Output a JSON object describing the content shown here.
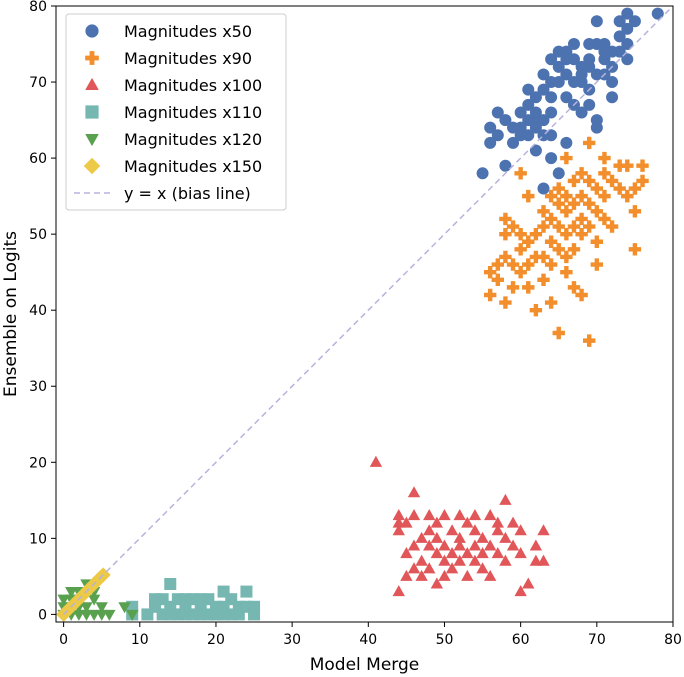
{
  "chart_data": {
    "type": "scatter",
    "title": "",
    "xlabel": "Model Merge",
    "ylabel": "Ensemble on Logits",
    "xlim": [
      -1,
      80
    ],
    "ylim": [
      -1,
      80
    ],
    "xticks": [
      0,
      10,
      20,
      30,
      40,
      50,
      60,
      70,
      80
    ],
    "yticks": [
      0,
      10,
      20,
      30,
      40,
      50,
      60,
      70,
      80
    ],
    "legend_position": "top-left",
    "series": [
      {
        "name": "Magnitudes x50",
        "marker": "circle",
        "color": "#4c72b0",
        "points": [
          [
            55,
            58
          ],
          [
            56,
            62
          ],
          [
            56,
            64
          ],
          [
            57,
            63
          ],
          [
            57,
            66
          ],
          [
            58,
            59
          ],
          [
            58,
            65
          ],
          [
            59,
            64
          ],
          [
            59,
            62
          ],
          [
            60,
            63
          ],
          [
            60,
            66
          ],
          [
            60,
            64
          ],
          [
            61,
            65
          ],
          [
            61,
            67
          ],
          [
            61,
            63
          ],
          [
            62,
            68
          ],
          [
            62,
            65
          ],
          [
            62,
            61
          ],
          [
            62,
            66
          ],
          [
            63,
            69
          ],
          [
            63,
            71
          ],
          [
            63,
            65
          ],
          [
            63,
            56
          ],
          [
            64,
            68
          ],
          [
            64,
            73
          ],
          [
            64,
            70
          ],
          [
            64,
            66
          ],
          [
            64,
            60
          ],
          [
            65,
            72
          ],
          [
            65,
            74
          ],
          [
            65,
            70
          ],
          [
            65,
            58
          ],
          [
            66,
            71
          ],
          [
            66,
            74
          ],
          [
            66,
            68
          ],
          [
            66,
            62
          ],
          [
            67,
            73
          ],
          [
            67,
            70
          ],
          [
            67,
            67
          ],
          [
            68,
            72
          ],
          [
            68,
            70
          ],
          [
            68,
            66
          ],
          [
            69,
            75
          ],
          [
            69,
            72
          ],
          [
            69,
            69
          ],
          [
            69,
            67
          ],
          [
            70,
            78
          ],
          [
            70,
            75
          ],
          [
            70,
            71
          ],
          [
            70,
            65
          ],
          [
            70,
            64
          ],
          [
            71,
            75
          ],
          [
            71,
            73
          ],
          [
            71,
            71
          ],
          [
            72,
            74
          ],
          [
            72,
            72
          ],
          [
            72,
            70
          ],
          [
            72,
            68
          ],
          [
            73,
            78
          ],
          [
            73,
            76
          ],
          [
            73,
            74
          ],
          [
            74,
            79
          ],
          [
            74,
            77
          ],
          [
            74,
            75
          ],
          [
            74,
            73
          ],
          [
            75,
            78
          ],
          [
            78,
            79
          ],
          [
            63,
            63
          ],
          [
            64,
            63
          ],
          [
            62,
            64
          ],
          [
            61,
            69
          ],
          [
            66,
            73
          ],
          [
            67,
            75
          ],
          [
            68,
            71
          ],
          [
            69,
            73
          ],
          [
            71,
            74
          ]
        ]
      },
      {
        "name": "Magnitudes x90",
        "marker": "plus",
        "color": "#f28e2b",
        "points": [
          [
            56,
            45
          ],
          [
            56,
            42
          ],
          [
            57,
            46
          ],
          [
            57,
            44
          ],
          [
            58,
            52
          ],
          [
            58,
            47
          ],
          [
            58,
            50
          ],
          [
            58,
            41
          ],
          [
            59,
            51
          ],
          [
            59,
            46
          ],
          [
            59,
            43
          ],
          [
            60,
            58
          ],
          [
            60,
            50
          ],
          [
            60,
            48
          ],
          [
            60,
            45
          ],
          [
            61,
            55
          ],
          [
            61,
            49
          ],
          [
            61,
            46
          ],
          [
            61,
            43
          ],
          [
            62,
            50
          ],
          [
            62,
            47
          ],
          [
            62,
            40
          ],
          [
            63,
            53
          ],
          [
            63,
            51
          ],
          [
            63,
            47
          ],
          [
            63,
            44
          ],
          [
            64,
            55
          ],
          [
            64,
            52
          ],
          [
            64,
            49
          ],
          [
            64,
            46
          ],
          [
            64,
            41
          ],
          [
            65,
            56
          ],
          [
            65,
            54
          ],
          [
            65,
            51
          ],
          [
            65,
            48
          ],
          [
            65,
            37
          ],
          [
            66,
            60
          ],
          [
            66,
            55
          ],
          [
            66,
            53
          ],
          [
            66,
            50
          ],
          [
            66,
            47
          ],
          [
            66,
            45
          ],
          [
            67,
            57
          ],
          [
            67,
            54
          ],
          [
            67,
            51
          ],
          [
            67,
            48
          ],
          [
            67,
            43
          ],
          [
            68,
            58
          ],
          [
            68,
            55
          ],
          [
            68,
            52
          ],
          [
            68,
            50
          ],
          [
            68,
            42
          ],
          [
            69,
            62
          ],
          [
            69,
            57
          ],
          [
            69,
            54
          ],
          [
            69,
            51
          ],
          [
            69,
            36
          ],
          [
            70,
            56
          ],
          [
            70,
            53
          ],
          [
            70,
            49
          ],
          [
            70,
            46
          ],
          [
            71,
            60
          ],
          [
            71,
            58
          ],
          [
            71,
            55
          ],
          [
            71,
            52
          ],
          [
            72,
            57
          ],
          [
            72,
            51
          ],
          [
            73,
            59
          ],
          [
            73,
            56
          ],
          [
            74,
            59
          ],
          [
            74,
            55
          ],
          [
            75,
            56
          ],
          [
            75,
            53
          ],
          [
            75,
            48
          ],
          [
            76,
            59
          ],
          [
            76,
            57
          ]
        ]
      },
      {
        "name": "Magnitudes x100",
        "marker": "triangle",
        "color": "#e15759",
        "points": [
          [
            41,
            20
          ],
          [
            44,
            3
          ],
          [
            44,
            13
          ],
          [
            44,
            12
          ],
          [
            44,
            11
          ],
          [
            45,
            5
          ],
          [
            45,
            8
          ],
          [
            45,
            12
          ],
          [
            46,
            16
          ],
          [
            46,
            6
          ],
          [
            46,
            9
          ],
          [
            46,
            13
          ],
          [
            47,
            10
          ],
          [
            47,
            7
          ],
          [
            47,
            5
          ],
          [
            48,
            13
          ],
          [
            48,
            11
          ],
          [
            48,
            9
          ],
          [
            48,
            6
          ],
          [
            49,
            4
          ],
          [
            49,
            8
          ],
          [
            49,
            12
          ],
          [
            49,
            10
          ],
          [
            50,
            5
          ],
          [
            50,
            9
          ],
          [
            50,
            13
          ],
          [
            50,
            7
          ],
          [
            51,
            11
          ],
          [
            51,
            8
          ],
          [
            51,
            6
          ],
          [
            52,
            13
          ],
          [
            52,
            10
          ],
          [
            52,
            7
          ],
          [
            52,
            9
          ],
          [
            53,
            12
          ],
          [
            53,
            8
          ],
          [
            53,
            5
          ],
          [
            54,
            11
          ],
          [
            54,
            9
          ],
          [
            54,
            13
          ],
          [
            54,
            7
          ],
          [
            55,
            10
          ],
          [
            55,
            8
          ],
          [
            55,
            6
          ],
          [
            56,
            13
          ],
          [
            56,
            9
          ],
          [
            56,
            5
          ],
          [
            57,
            11
          ],
          [
            57,
            8
          ],
          [
            57,
            12
          ],
          [
            58,
            15
          ],
          [
            58,
            10
          ],
          [
            58,
            7
          ],
          [
            59,
            12
          ],
          [
            59,
            9
          ],
          [
            60,
            3
          ],
          [
            60,
            8
          ],
          [
            60,
            11
          ],
          [
            61,
            4
          ],
          [
            62,
            9
          ],
          [
            62,
            7
          ],
          [
            63,
            11
          ],
          [
            63,
            7
          ]
        ]
      },
      {
        "name": "Magnitudes x110",
        "marker": "square",
        "color": "#76b7b2",
        "points": [
          [
            9,
            1
          ],
          [
            9,
            0
          ],
          [
            11,
            0
          ],
          [
            12,
            2
          ],
          [
            12,
            1
          ],
          [
            13,
            0
          ],
          [
            13,
            2
          ],
          [
            14,
            4
          ],
          [
            14,
            1
          ],
          [
            15,
            2
          ],
          [
            15,
            0
          ],
          [
            16,
            1
          ],
          [
            16,
            2
          ],
          [
            17,
            0
          ],
          [
            17,
            2
          ],
          [
            18,
            1
          ],
          [
            18,
            0
          ],
          [
            19,
            2
          ],
          [
            19,
            0
          ],
          [
            20,
            1
          ],
          [
            20,
            0
          ],
          [
            21,
            3
          ],
          [
            21,
            1
          ],
          [
            21,
            0
          ],
          [
            22,
            2
          ],
          [
            22,
            0
          ],
          [
            23,
            1
          ],
          [
            23,
            0
          ],
          [
            24,
            3
          ],
          [
            24,
            1
          ],
          [
            25,
            1
          ],
          [
            25,
            0
          ],
          [
            14,
            0
          ],
          [
            16,
            0
          ],
          [
            18,
            2
          ]
        ]
      },
      {
        "name": "Magnitudes x120",
        "marker": "triangle-down",
        "color": "#59a14f",
        "points": [
          [
            0,
            0
          ],
          [
            0,
            1
          ],
          [
            0,
            2
          ],
          [
            1,
            0
          ],
          [
            1,
            1
          ],
          [
            1,
            2
          ],
          [
            2,
            0
          ],
          [
            2,
            1
          ],
          [
            2,
            2
          ],
          [
            3,
            0
          ],
          [
            3,
            1
          ],
          [
            3,
            3
          ],
          [
            3,
            4
          ],
          [
            4,
            0
          ],
          [
            4,
            2
          ],
          [
            4,
            3
          ],
          [
            5,
            0
          ],
          [
            5,
            1
          ],
          [
            6,
            0
          ],
          [
            8,
            1
          ],
          [
            9,
            0
          ],
          [
            1,
            3
          ],
          [
            2,
            3
          ]
        ]
      },
      {
        "name": "Magnitudes x150",
        "marker": "diamond",
        "color": "#edc948",
        "points": [
          [
            0,
            0
          ],
          [
            0.4,
            0.4
          ],
          [
            0.8,
            0.8
          ],
          [
            1.2,
            1.2
          ],
          [
            1.6,
            1.6
          ],
          [
            2,
            2
          ],
          [
            2.4,
            2.4
          ],
          [
            2.8,
            2.8
          ],
          [
            3.2,
            3.2
          ],
          [
            3.6,
            3.6
          ],
          [
            4,
            4
          ],
          [
            4.4,
            4.4
          ],
          [
            4.8,
            4.8
          ],
          [
            5.2,
            5.2
          ]
        ]
      },
      {
        "name": "y = x (bias line)",
        "marker": "dashed-line",
        "color": "#b7b2de",
        "points": [
          [
            0,
            0
          ],
          [
            80,
            80
          ]
        ]
      }
    ]
  }
}
